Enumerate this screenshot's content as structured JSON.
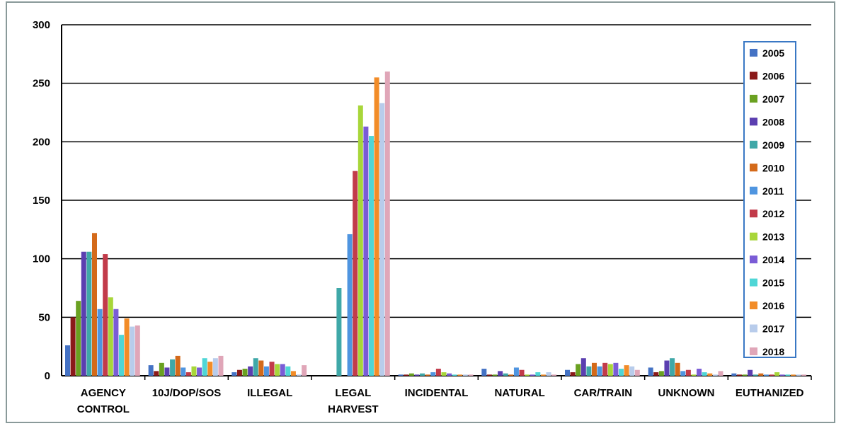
{
  "chart_data": {
    "type": "bar",
    "title": "",
    "xlabel": "",
    "ylabel": "",
    "ylim": [
      0,
      300
    ],
    "yticks": [
      "0",
      "50",
      "100",
      "150",
      "200",
      "250",
      "300"
    ],
    "grid": true,
    "legend_position": "right",
    "categories": [
      [
        "AGENCY",
        "CONTROL"
      ],
      [
        "10J/DOP/SOS"
      ],
      [
        "ILLEGAL"
      ],
      [
        "LEGAL",
        "HARVEST"
      ],
      [
        "INCIDENTAL"
      ],
      [
        "NATURAL"
      ],
      [
        "CAR/TRAIN"
      ],
      [
        "UNKNOWN"
      ],
      [
        "EUTHANIZED"
      ]
    ],
    "series": [
      {
        "name": "2005",
        "color": "#4472C4",
        "values": [
          26,
          9,
          3,
          0,
          1,
          6,
          5,
          7,
          2
        ]
      },
      {
        "name": "2006",
        "color": "#8B1A1A",
        "values": [
          50,
          4,
          5,
          0,
          1,
          1,
          3,
          3,
          1
        ]
      },
      {
        "name": "2007",
        "color": "#6AA121",
        "values": [
          64,
          11,
          6,
          0,
          2,
          1,
          10,
          4,
          1
        ]
      },
      {
        "name": "2008",
        "color": "#5B3FB0",
        "values": [
          106,
          7,
          8,
          0,
          1,
          4,
          15,
          13,
          5
        ]
      },
      {
        "name": "2009",
        "color": "#3FA8A8",
        "values": [
          106,
          14,
          15,
          75,
          2,
          2,
          8,
          15,
          1
        ]
      },
      {
        "name": "2010",
        "color": "#D46A1A",
        "values": [
          122,
          17,
          13,
          0,
          1,
          1,
          11,
          11,
          2
        ]
      },
      {
        "name": "2011",
        "color": "#4F95E0",
        "values": [
          57,
          7,
          8,
          121,
          3,
          7,
          8,
          4,
          1
        ]
      },
      {
        "name": "2012",
        "color": "#C23B4A",
        "values": [
          104,
          3,
          12,
          175,
          6,
          5,
          11,
          5,
          1
        ]
      },
      {
        "name": "2013",
        "color": "#A8D63A",
        "values": [
          67,
          8,
          10,
          231,
          3,
          1,
          10,
          1,
          3
        ]
      },
      {
        "name": "2014",
        "color": "#7A5CD6",
        "values": [
          57,
          7,
          10,
          213,
          2,
          1,
          11,
          6,
          1
        ]
      },
      {
        "name": "2015",
        "color": "#4FD6D6",
        "values": [
          35,
          15,
          8,
          205,
          1,
          3,
          6,
          3,
          1
        ]
      },
      {
        "name": "2016",
        "color": "#F28C28",
        "values": [
          49,
          12,
          4,
          255,
          1,
          1,
          9,
          2,
          1
        ]
      },
      {
        "name": "2017",
        "color": "#B8CCEB",
        "values": [
          42,
          15,
          1,
          233,
          1,
          3,
          8,
          1,
          1
        ]
      },
      {
        "name": "2018",
        "color": "#E0A6B8",
        "values": [
          43,
          17,
          9,
          260,
          1,
          1,
          5,
          4,
          1
        ]
      }
    ]
  }
}
